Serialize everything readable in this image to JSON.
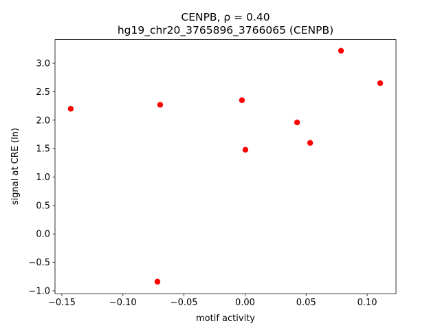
{
  "chart_data": {
    "type": "scatter",
    "title": "CENPB, ρ = 0.40",
    "subtitle": "hg19_chr20_3765896_3766065 (CENPB)",
    "x_label": "motif activity",
    "y_label": "signal at CRE (ln)",
    "color": "#ff0000",
    "series": [
      {
        "x": [
          -0.1427,
          -0.0695,
          -0.0717,
          -0.0025,
          0.0003,
          0.0426,
          0.0533,
          0.0786,
          0.1107
        ],
        "values": [
          2.2,
          2.27,
          -0.84,
          2.35,
          1.48,
          1.96,
          1.6,
          3.22,
          2.65
        ]
      }
    ],
    "xlim": [
      -0.1556,
      0.1236
    ],
    "ylim": [
      -1.051,
      3.416
    ],
    "xticks": [
      {
        "value": -0.15,
        "label": "−0.15"
      },
      {
        "value": -0.1,
        "label": "−0.10"
      },
      {
        "value": -0.05,
        "label": "−0.05"
      },
      {
        "value": 0,
        "label": "0.00"
      },
      0.05,
      {
        "value": 0.1,
        "label": "0.10"
      }
    ],
    "yticks": [
      {
        "value": -1,
        "label": "−1.0"
      },
      {
        "value": -0.5,
        "label": "−0.5"
      },
      {
        "value": 0,
        "label": "0.0"
      },
      0.5,
      {
        "value": 1,
        "label": "1.0"
      },
      1.5,
      {
        "value": 2,
        "label": "2.0"
      },
      2.5,
      {
        "value": 3,
        "label": "3.0"
      }
    ]
  }
}
